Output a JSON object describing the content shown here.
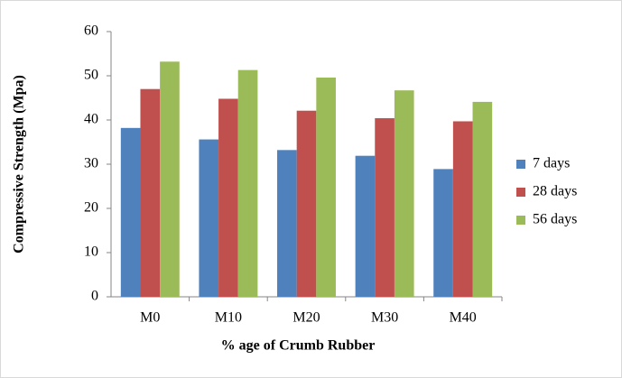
{
  "chart_data": {
    "type": "bar",
    "x_label": "% age of Crumb Rubber",
    "y_label": "Compressive Strength (Mpa)",
    "categories": [
      "M0",
      "M10",
      "M20",
      "M30",
      "M40"
    ],
    "series": [
      {
        "name": "7 days",
        "color": "#4f81bd",
        "values": [
          38.2,
          35.6,
          33.2,
          31.9,
          28.9
        ]
      },
      {
        "name": "28 days",
        "color": "#c0504d",
        "values": [
          47,
          44.8,
          42.1,
          40.4,
          39.7
        ]
      },
      {
        "name": "56 days",
        "color": "#9bbb59",
        "values": [
          53.2,
          51.3,
          49.6,
          46.7,
          44.1
        ]
      }
    ],
    "ylim": [
      0,
      60
    ],
    "yticks": [
      0,
      10,
      20,
      30,
      40,
      50,
      60
    ],
    "grid": false,
    "legend": "right"
  }
}
